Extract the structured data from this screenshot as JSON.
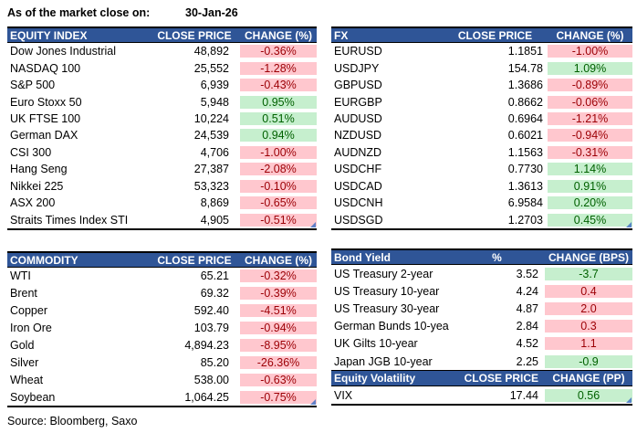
{
  "header": {
    "as_of_label": "As of the market close on:",
    "as_of_date": "30-Jan-26"
  },
  "footer": {
    "source": "Source: Bloomberg, Saxo"
  },
  "colors": {
    "table_header_bg": "#2F5597",
    "table_header_text": "#FFFFFF",
    "positive_bg": "#C6EFCE",
    "positive_text": "#006100",
    "negative_bg": "#FFC7CE",
    "negative_text": "#9C0006",
    "corner_artifact": "#4472C4"
  },
  "tables": {
    "equity_index": {
      "title": "EQUITY INDEX",
      "col_price": "CLOSE PRICE",
      "col_change": "CHANGE (%)",
      "rows": [
        {
          "name": "Dow Jones Industrial",
          "close": "48,892",
          "change": "-0.36%",
          "tone": "bad"
        },
        {
          "name": "NASDAQ 100",
          "close": "25,552",
          "change": "-1.28%",
          "tone": "bad"
        },
        {
          "name": "S&P 500",
          "close": "6,939",
          "change": "-0.43%",
          "tone": "bad"
        },
        {
          "name": "Euro Stoxx 50",
          "close": "5,948",
          "change": "0.95%",
          "tone": "good"
        },
        {
          "name": "UK FTSE 100",
          "close": "10,224",
          "change": "0.51%",
          "tone": "good"
        },
        {
          "name": "German DAX",
          "close": "24,539",
          "change": "0.94%",
          "tone": "good"
        },
        {
          "name": "CSI 300",
          "close": "4,706",
          "change": "-1.00%",
          "tone": "bad"
        },
        {
          "name": "Hang Seng",
          "close": "27,387",
          "change": "-2.08%",
          "tone": "bad"
        },
        {
          "name": "Nikkei 225",
          "close": "53,323",
          "change": "-0.10%",
          "tone": "bad"
        },
        {
          "name": "ASX 200",
          "close": "8,869",
          "change": "-0.65%",
          "tone": "bad"
        },
        {
          "name": "Straits Times Index STI",
          "close": "4,905",
          "change": "-0.51%",
          "tone": "bad"
        }
      ]
    },
    "fx": {
      "title": "FX",
      "col_price": "CLOSE PRICE",
      "col_change": "CHANGE (%)",
      "rows": [
        {
          "name": "EURUSD",
          "close": "1.1851",
          "change": "-1.00%",
          "tone": "bad"
        },
        {
          "name": "USDJPY",
          "close": "154.78",
          "change": "1.09%",
          "tone": "good"
        },
        {
          "name": "GBPUSD",
          "close": "1.3686",
          "change": "-0.89%",
          "tone": "bad"
        },
        {
          "name": "EURGBP",
          "close": "0.8662",
          "change": "-0.06%",
          "tone": "bad"
        },
        {
          "name": "AUDUSD",
          "close": "0.6964",
          "change": "-1.21%",
          "tone": "bad"
        },
        {
          "name": "NZDUSD",
          "close": "0.6021",
          "change": "-0.94%",
          "tone": "bad"
        },
        {
          "name": "AUDNZD",
          "close": "1.1563",
          "change": "-0.31%",
          "tone": "bad"
        },
        {
          "name": "USDCHF",
          "close": "0.7730",
          "change": "1.14%",
          "tone": "good"
        },
        {
          "name": "USDCAD",
          "close": "1.3613",
          "change": "0.91%",
          "tone": "good"
        },
        {
          "name": "USDCNH",
          "close": "6.9584",
          "change": "0.20%",
          "tone": "good"
        },
        {
          "name": "USDSGD",
          "close": "1.2703",
          "change": "0.45%",
          "tone": "good"
        }
      ]
    },
    "commodity": {
      "title": "COMMODITY",
      "col_price": "CLOSE PRICE",
      "col_change": "CHANGE (%)",
      "rows": [
        {
          "name": "WTI",
          "close": "65.21",
          "change": "-0.32%",
          "tone": "bad"
        },
        {
          "name": "Brent",
          "close": "69.32",
          "change": "-0.39%",
          "tone": "bad"
        },
        {
          "name": "Copper",
          "close": "592.40",
          "change": "-4.51%",
          "tone": "bad"
        },
        {
          "name": "Iron Ore",
          "close": "103.79",
          "change": "-0.94%",
          "tone": "bad"
        },
        {
          "name": "Gold",
          "close": "4,894.23",
          "change": "-8.95%",
          "tone": "bad"
        },
        {
          "name": "Silver",
          "close": "85.20",
          "change": "-26.36%",
          "tone": "bad"
        },
        {
          "name": "Wheat",
          "close": "538.00",
          "change": "-0.63%",
          "tone": "bad"
        },
        {
          "name": "Soybean",
          "close": "1,064.25",
          "change": "-0.75%",
          "tone": "bad"
        }
      ]
    },
    "bond_yield": {
      "title": "Bond Yield",
      "col_price": "%",
      "col_change": "CHANGE (BPS)",
      "rows": [
        {
          "name": "US Treasury 2-year",
          "close": "3.52",
          "change": "-3.7",
          "tone": "good"
        },
        {
          "name": "US Treasury 10-year",
          "close": "4.24",
          "change": "0.4",
          "tone": "bad"
        },
        {
          "name": "US Treasury 30-year",
          "close": "4.87",
          "change": "2.0",
          "tone": "bad"
        },
        {
          "name": "German Bunds 10-year",
          "close": "2.84",
          "change": "0.3",
          "tone": "bad"
        },
        {
          "name": "UK Gilts 10-year",
          "close": "4.52",
          "change": "1.1",
          "tone": "bad"
        },
        {
          "name": "Japan JGB 10-year",
          "close": "2.25",
          "change": "-0.9",
          "tone": "good"
        }
      ]
    },
    "equity_volatility": {
      "title": "Equity Volatility",
      "col_price": "CLOSE PRICE",
      "col_change": "CHANGE (PP)",
      "rows": [
        {
          "name": "VIX",
          "close": "17.44",
          "change": "0.56",
          "tone": "good"
        }
      ]
    }
  }
}
